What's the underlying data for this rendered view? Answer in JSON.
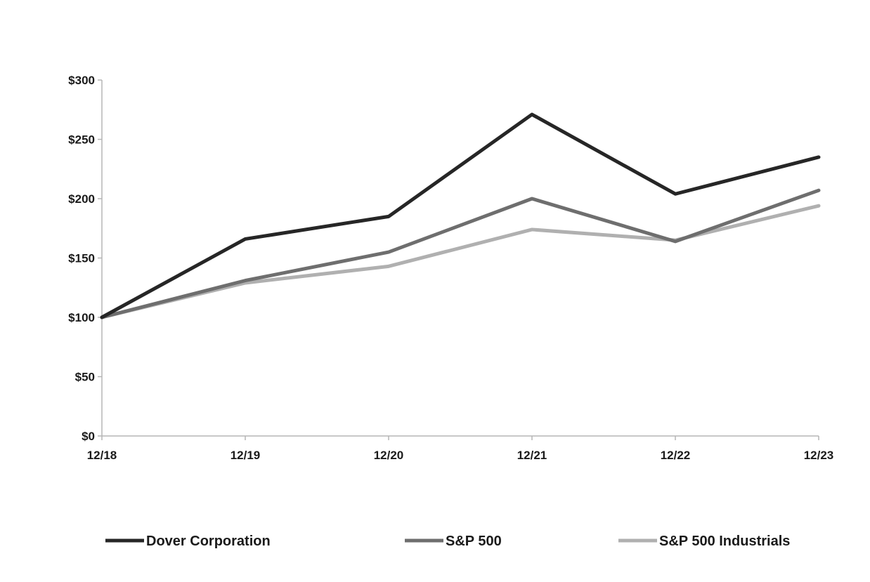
{
  "chart_data": {
    "type": "line",
    "categories": [
      "12/18",
      "12/19",
      "12/20",
      "12/21",
      "12/22",
      "12/23"
    ],
    "y_ticks": [
      "$0",
      "$50",
      "$100",
      "$150",
      "$200",
      "$250",
      "$300"
    ],
    "ylim": [
      0,
      300
    ],
    "grid": false,
    "legend_position": "bottom",
    "series": [
      {
        "name": "Dover Corporation",
        "color": "#262626",
        "values": [
          100,
          166,
          185,
          271,
          204,
          235
        ]
      },
      {
        "name": "S&P 500",
        "color": "#6e6e6e",
        "values": [
          100,
          131,
          155,
          200,
          164,
          207
        ]
      },
      {
        "name": "S&P 500 Industrials",
        "color": "#b0b0b0",
        "values": [
          100,
          129,
          143,
          174,
          165,
          194
        ]
      }
    ]
  }
}
